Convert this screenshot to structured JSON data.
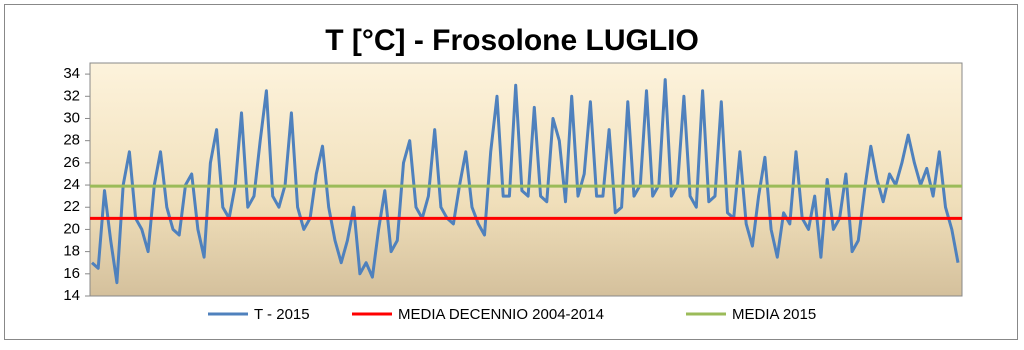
{
  "chart_data": {
    "type": "line",
    "title": "T [°C] - Frosolone LUGLIO",
    "ylim": [
      14,
      35
    ],
    "yticks": [
      14,
      16,
      18,
      20,
      22,
      24,
      26,
      28,
      30,
      32,
      34
    ],
    "series": [
      {
        "name": "T - 2015",
        "color": "#4f81bd",
        "values": [
          17,
          16.5,
          23.5,
          19,
          15.2,
          24,
          27,
          21,
          20,
          18,
          24,
          27,
          22,
          20,
          19.5,
          24,
          25,
          20,
          17.5,
          26,
          29,
          22,
          21,
          24,
          30.5,
          22,
          23,
          28,
          32.5,
          23,
          22,
          24,
          30.5,
          22,
          20,
          21,
          25,
          27.5,
          22,
          19,
          17,
          19,
          22,
          16,
          17,
          15.7,
          20,
          23.5,
          18,
          19,
          26,
          28,
          22,
          21,
          23,
          29,
          22,
          21,
          20.5,
          24,
          27,
          22,
          20.5,
          19.5,
          27,
          32,
          23,
          23,
          33,
          23.5,
          23,
          31,
          23,
          22.5,
          30,
          28,
          22.5,
          32,
          23,
          25,
          31.5,
          23,
          23,
          29,
          21.5,
          22,
          31.5,
          23,
          24,
          32.5,
          23,
          24,
          33.5,
          23,
          24,
          32,
          23,
          22,
          32.5,
          22.5,
          23,
          31.5,
          21.5,
          21,
          27,
          20.5,
          18.5,
          23,
          26.5,
          20,
          17.5,
          21.5,
          20.5,
          27,
          21,
          20,
          23,
          17.5,
          24.5,
          20,
          21,
          25,
          18,
          19,
          23.5,
          27.5,
          24.5,
          22.5,
          25,
          24,
          26,
          28.5,
          26,
          24,
          25.5,
          23,
          27,
          22,
          20,
          17
        ]
      },
      {
        "name": "MEDIA DECENNIO 2004-2014",
        "color": "#ff0000",
        "values": [
          21.0
        ]
      },
      {
        "name": "MEDIA 2015",
        "color": "#9bbb59",
        "values": [
          23.9
        ]
      }
    ]
  }
}
